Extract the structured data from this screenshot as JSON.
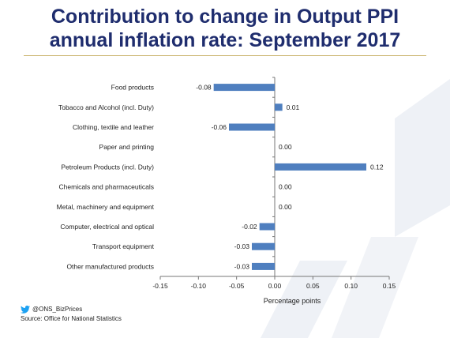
{
  "title_line1": "Contribution to change in Output PPI",
  "title_line2": "annual inflation rate: September 2017",
  "footer": {
    "twitter_icon": "twitter-bird-icon",
    "handle": "@ONS_BizPrices",
    "source": "Source: Office for National Statistics"
  },
  "colors": {
    "bar": "#4f7fbf",
    "title": "#1f2d6e",
    "rule": "#c9b26a"
  },
  "chart_data": {
    "type": "bar",
    "orientation": "horizontal",
    "categories": [
      "Food products",
      "Tobacco and Alcohol (incl. Duty)",
      "Clothing, textile and leather",
      "Paper and printing",
      "Petroleum Products (incl. Duty)",
      "Chemicals and pharmaceuticals",
      "Metal, machinery and equipment",
      "Computer, electrical and optical",
      "Transport equipment",
      "Other manufactured products"
    ],
    "values": [
      -0.08,
      0.01,
      -0.06,
      0.0,
      0.12,
      0.0,
      0.0,
      -0.02,
      -0.03,
      -0.03
    ],
    "value_labels": [
      "-0.08",
      "0.01",
      "-0.06",
      "0.00",
      "0.12",
      "0.00",
      "0.00",
      "-0.02",
      "-0.03",
      "-0.03"
    ],
    "xlim": [
      -0.15,
      0.15
    ],
    "xticks": [
      -0.15,
      -0.1,
      -0.05,
      0.0,
      0.05,
      0.1,
      0.15
    ],
    "xtick_labels": [
      "-0.15",
      "-0.10",
      "-0.05",
      "0.00",
      "0.05",
      "0.10",
      "0.15"
    ],
    "xlabel": "Percentage points",
    "grid": false
  }
}
